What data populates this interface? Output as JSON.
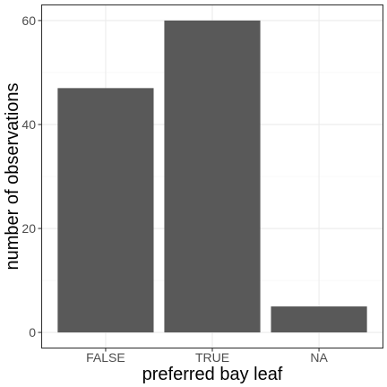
{
  "chart_data": {
    "type": "bar",
    "categories": [
      "FALSE",
      "TRUE",
      "NA"
    ],
    "values": [
      47,
      60,
      5
    ],
    "xlabel": "preferred bay leaf",
    "ylabel": "number of observations",
    "ylim": [
      0,
      63
    ],
    "yticks": [
      0,
      20,
      40,
      60
    ],
    "grid": true,
    "colors": {
      "bar": "#595959",
      "panel_background": "#ffffff",
      "panel_border": "#333333",
      "grid_major": "#ebebeb",
      "grid_minor": "#f5f5f5",
      "tick_text": "#4d4d4d",
      "title_text": "#000000"
    }
  }
}
